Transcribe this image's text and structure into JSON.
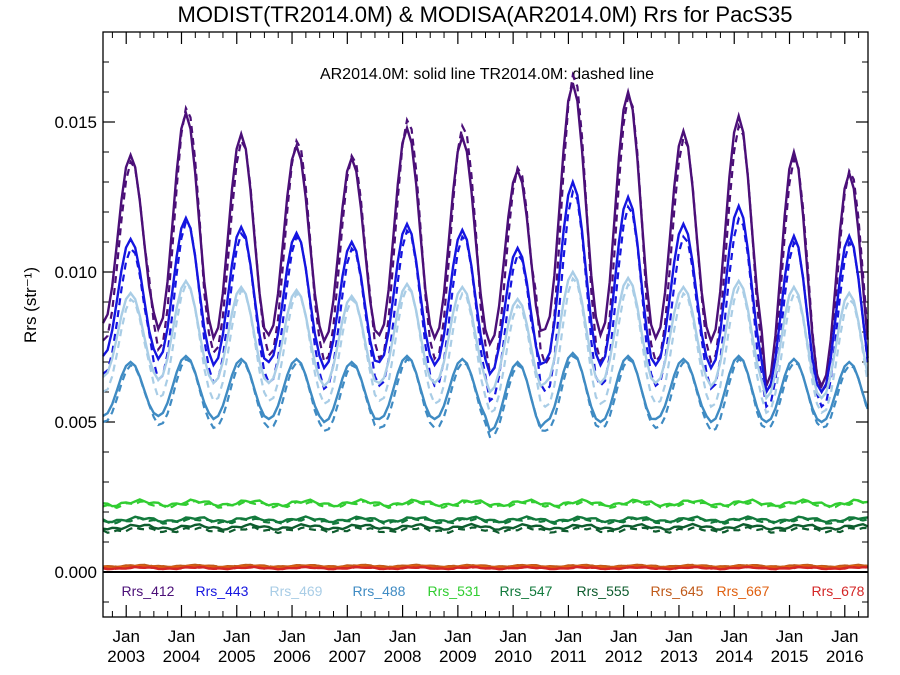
{
  "chart_data": {
    "type": "line",
    "title": "MODIST(TR2014.0M) & MODISA(AR2014.0M)  Rrs for PacS35",
    "annotation": "AR2014.0M: solid line   TR2014.0M: dashed line",
    "ylabel": "Rrs (str⁻¹)",
    "xlabel": "",
    "ylim": [
      -0.0015,
      0.018
    ],
    "x_start_year": 2002.58,
    "x_end_year": 2016.42,
    "y_ticks": [
      {
        "value": 0.0,
        "label": "0.000"
      },
      {
        "value": 0.005,
        "label": "0.005"
      },
      {
        "value": 0.01,
        "label": "0.010"
      },
      {
        "value": 0.015,
        "label": "0.015"
      }
    ],
    "x_ticks": [
      {
        "year": 2003,
        "month": "Jan",
        "label": "2003"
      },
      {
        "year": 2004,
        "month": "Jan",
        "label": "2004"
      },
      {
        "year": 2005,
        "month": "Jan",
        "label": "2005"
      },
      {
        "year": 2006,
        "month": "Jan",
        "label": "2006"
      },
      {
        "year": 2007,
        "month": "Jan",
        "label": "2007"
      },
      {
        "year": 2008,
        "month": "Jan",
        "label": "2008"
      },
      {
        "year": 2009,
        "month": "Jan",
        "label": "2009"
      },
      {
        "year": 2010,
        "month": "Jan",
        "label": "2010"
      },
      {
        "year": 2011,
        "month": "Jan",
        "label": "2011"
      },
      {
        "year": 2012,
        "month": "Jan",
        "label": "2012"
      },
      {
        "year": 2013,
        "month": "Jan",
        "label": "2013"
      },
      {
        "year": 2014,
        "month": "Jan",
        "label": "2014"
      },
      {
        "year": 2015,
        "month": "Jan",
        "label": "2015"
      },
      {
        "year": 2016,
        "month": "Jan",
        "label": "2016"
      }
    ],
    "legend_placement": "bottom, inside plot",
    "series": [
      {
        "name": "Rrs_412",
        "color": "#4b0f78",
        "annual_peak_year": [
          2003.0,
          2004.0,
          2005.0,
          2006.0,
          2007.0,
          2008.0,
          2009.0,
          2010.0,
          2011.0,
          2012.0,
          2013.0,
          2014.0,
          2015.0,
          2016.0
        ],
        "solid_peaks": [
          0.0139,
          0.0153,
          0.0146,
          0.0142,
          0.0138,
          0.0148,
          0.0145,
          0.0134,
          0.0163,
          0.016,
          0.0147,
          0.0152,
          0.014,
          0.0133
        ],
        "solid_troughs": [
          0.0083,
          0.0081,
          0.0078,
          0.0079,
          0.0077,
          0.0079,
          0.0078,
          0.0076,
          0.0081,
          0.0079,
          0.0078,
          0.0077,
          0.0062,
          0.0062
        ],
        "dashed_peaks": [
          0.0137,
          0.0155,
          0.0144,
          0.0144,
          0.0139,
          0.0151,
          0.0149,
          0.0135,
          0.0166,
          0.0159,
          0.0145,
          0.0149,
          0.0138,
          0.0134
        ],
        "dashed_troughs": [
          0.0077,
          0.0074,
          0.0073,
          0.0072,
          0.007,
          0.0071,
          0.0071,
          0.0066,
          0.0069,
          0.007,
          0.007,
          0.007,
          0.006,
          0.006
        ]
      },
      {
        "name": "Rrs_443",
        "color": "#1515e0",
        "solid_peaks": [
          0.0111,
          0.0118,
          0.0115,
          0.0113,
          0.011,
          0.0116,
          0.0114,
          0.0108,
          0.013,
          0.0125,
          0.0116,
          0.0122,
          0.0112,
          0.0112
        ],
        "solid_troughs": [
          0.0072,
          0.0071,
          0.0069,
          0.007,
          0.0068,
          0.007,
          0.0069,
          0.0066,
          0.007,
          0.0069,
          0.0069,
          0.0068,
          0.006,
          0.006
        ],
        "dashed_peaks": [
          0.0108,
          0.0117,
          0.0113,
          0.0112,
          0.0108,
          0.0114,
          0.0112,
          0.0106,
          0.0127,
          0.0122,
          0.0112,
          0.0118,
          0.011,
          0.011
        ],
        "dashed_troughs": [
          0.0066,
          0.0064,
          0.0063,
          0.0063,
          0.0061,
          0.0062,
          0.0062,
          0.0057,
          0.006,
          0.0062,
          0.0062,
          0.0061,
          0.0055,
          0.0055
        ]
      },
      {
        "name": "Rrs_469",
        "color": "#a9cde6",
        "solid_peaks": [
          0.0093,
          0.0097,
          0.0095,
          0.0094,
          0.0092,
          0.0096,
          0.0095,
          0.0091,
          0.01,
          0.0098,
          0.0095,
          0.0097,
          0.0095,
          0.0093
        ],
        "solid_troughs": [
          0.0065,
          0.0064,
          0.0063,
          0.0063,
          0.0062,
          0.0063,
          0.0063,
          0.006,
          0.0063,
          0.0063,
          0.0063,
          0.0062,
          0.0058,
          0.0058
        ],
        "dashed_peaks": [
          0.0091,
          0.0096,
          0.0094,
          0.0093,
          0.0091,
          0.0095,
          0.0093,
          0.0089,
          0.0098,
          0.0096,
          0.0093,
          0.0095,
          0.0093,
          0.0091
        ],
        "dashed_troughs": [
          0.006,
          0.0058,
          0.0057,
          0.0057,
          0.0056,
          0.0057,
          0.0056,
          0.0053,
          0.0055,
          0.0056,
          0.0056,
          0.0055,
          0.0053,
          0.0053
        ]
      },
      {
        "name": "Rrs_488",
        "color": "#3f8bc3",
        "solid_peaks": [
          0.007,
          0.0072,
          0.0071,
          0.0071,
          0.007,
          0.0072,
          0.0071,
          0.007,
          0.0073,
          0.0072,
          0.0071,
          0.0072,
          0.0071,
          0.007
        ],
        "solid_troughs": [
          0.0052,
          0.0052,
          0.0051,
          0.0051,
          0.005,
          0.0051,
          0.0051,
          0.0047,
          0.005,
          0.005,
          0.0051,
          0.005,
          0.005,
          0.005
        ],
        "dashed_peaks": [
          0.0069,
          0.0071,
          0.007,
          0.007,
          0.0069,
          0.0071,
          0.007,
          0.0069,
          0.0072,
          0.0071,
          0.007,
          0.0071,
          0.007,
          0.0069
        ],
        "dashed_troughs": [
          0.005,
          0.0049,
          0.0048,
          0.0048,
          0.0047,
          0.0048,
          0.0048,
          0.0045,
          0.0047,
          0.0048,
          0.0048,
          0.0047,
          0.0048,
          0.0048
        ]
      },
      {
        "name": "Rrs_531",
        "color": "#31cd31",
        "solid_level": 0.0023,
        "dashed_level": 0.00225,
        "amplitude": 0.00012
      },
      {
        "name": "Rrs_547",
        "color": "#127a3c",
        "solid_level": 0.00175,
        "dashed_level": 0.0017,
        "amplitude": 0.0001
      },
      {
        "name": "Rrs_555",
        "color": "#0e5c2e",
        "solid_level": 0.0015,
        "dashed_level": 0.0014,
        "amplitude": 0.0001
      },
      {
        "name": "Rrs_645",
        "color": "#c05a1a",
        "solid_level": 0.0002,
        "dashed_level": 0.0002,
        "amplitude": 4e-05
      },
      {
        "name": "Rrs_667",
        "color": "#e06010",
        "solid_level": 0.00016,
        "dashed_level": 0.00016,
        "amplitude": 4e-05
      },
      {
        "name": "Rrs_678",
        "color": "#d42626",
        "solid_level": 0.00013,
        "dashed_level": 0.00013,
        "amplitude": 4e-05
      }
    ]
  }
}
